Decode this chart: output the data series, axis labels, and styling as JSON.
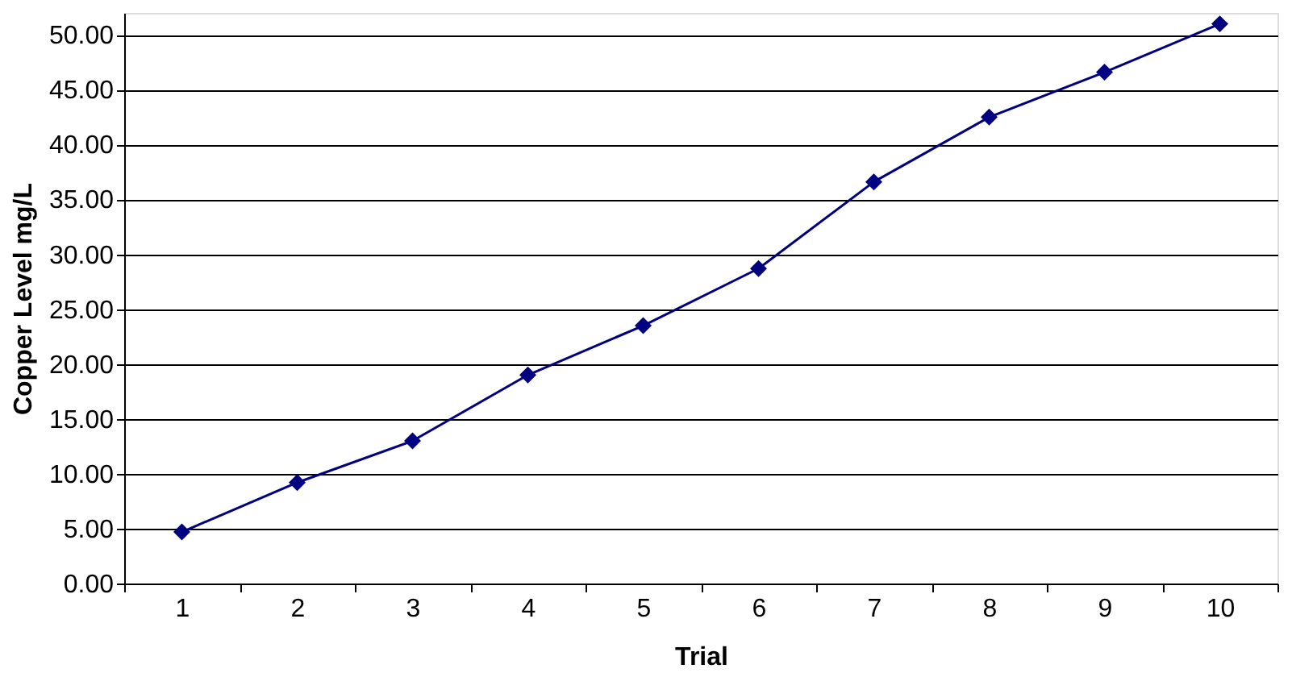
{
  "chart_data": {
    "type": "line",
    "xlabel": "Trial",
    "ylabel": "Copper Level mg/L",
    "categories": [
      "1",
      "2",
      "3",
      "4",
      "5",
      "6",
      "7",
      "8",
      "9",
      "10"
    ],
    "series": [
      {
        "color": "#000080",
        "values": [
          4.7,
          9.2,
          13.0,
          19.0,
          23.5,
          28.7,
          36.6,
          42.5,
          46.6,
          51.0
        ]
      }
    ],
    "ylim": [
      0,
      52
    ],
    "yticks": [
      {
        "value": 0,
        "label": "0.00"
      },
      {
        "value": 5,
        "label": "5.00"
      },
      {
        "value": 10,
        "label": "10.00"
      },
      {
        "value": 15,
        "label": "15.00"
      },
      {
        "value": 20,
        "label": "20.00"
      },
      {
        "value": 25,
        "label": "25.00"
      },
      {
        "value": 30,
        "label": "30.00"
      },
      {
        "value": 35,
        "label": "35.00"
      },
      {
        "value": 40,
        "label": "40.00"
      },
      {
        "value": 45,
        "label": "45.00"
      },
      {
        "value": 50,
        "label": "50.00"
      }
    ],
    "grid": "y",
    "legend": false,
    "marker": "diamond",
    "line_style": "solid"
  }
}
